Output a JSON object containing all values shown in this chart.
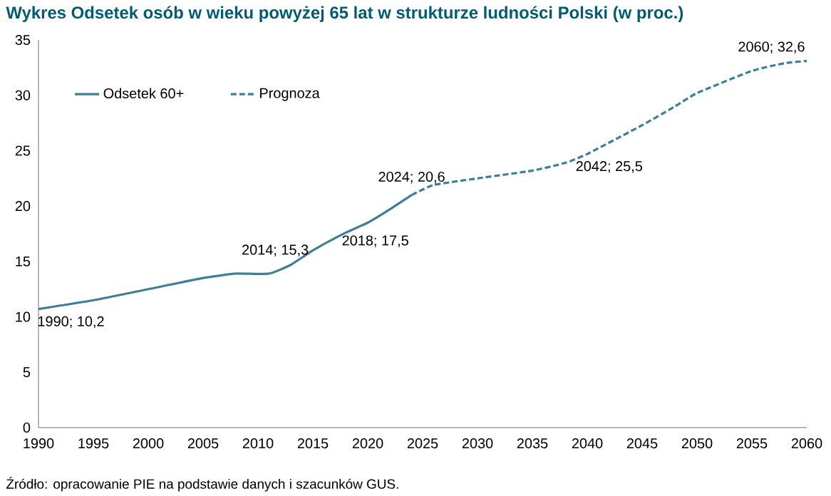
{
  "chart_data": {
    "type": "line",
    "title": "Wykres  Odsetek osób w wieku powyżej 65 lat w strukturze ludności Polski (w proc.)",
    "series": [
      {
        "name": "Odsetek 60+",
        "color": "#3e7f98",
        "line_style": "solid",
        "x": [
          1990,
          1995,
          2000,
          2005,
          2008,
          2011,
          2013,
          2015,
          2018,
          2020,
          2022,
          2024
        ],
        "values": [
          10.7,
          11.5,
          12.5,
          13.5,
          13.9,
          13.9,
          14.7,
          16.0,
          17.6,
          18.5,
          19.7,
          21.0
        ]
      },
      {
        "name": "Prognoza",
        "color": "#3e7f98",
        "line_style": "dashed",
        "x": [
          2024,
          2026,
          2030,
          2035,
          2038,
          2040,
          2045,
          2048,
          2050,
          2055,
          2058,
          2060
        ],
        "values": [
          21.0,
          21.9,
          22.5,
          23.2,
          23.9,
          24.7,
          27.3,
          29.0,
          30.2,
          32.2,
          32.9,
          33.1
        ]
      }
    ],
    "xlim": [
      1990,
      2060
    ],
    "xticks": [
      1990,
      1995,
      2000,
      2005,
      2010,
      2015,
      2020,
      2025,
      2030,
      2035,
      2040,
      2045,
      2050,
      2055,
      2060
    ],
    "ylim": [
      0,
      35
    ],
    "yticks": [
      0,
      5,
      10,
      15,
      20,
      25,
      30,
      35
    ],
    "grid": false,
    "legend": "top left",
    "marker": "none",
    "annotations": [
      {
        "text": "1990; 10,2",
        "x": 1990,
        "y": 10.2
      },
      {
        "text": "2014; 15,3",
        "x": 2014,
        "y": 15.3
      },
      {
        "text": "2018; 17,5",
        "x": 2018,
        "y": 17.5
      },
      {
        "text": "2024; 20,6",
        "x": 2024,
        "y": 20.6
      },
      {
        "text": "2042; 25,5",
        "x": 2042,
        "y": 25.5
      },
      {
        "text": "2060; 32,6",
        "x": 2060,
        "y": 32.6
      },
      "Źródło: opracowanie PIE na podstawie danych i szacunków GUS."
    ]
  }
}
